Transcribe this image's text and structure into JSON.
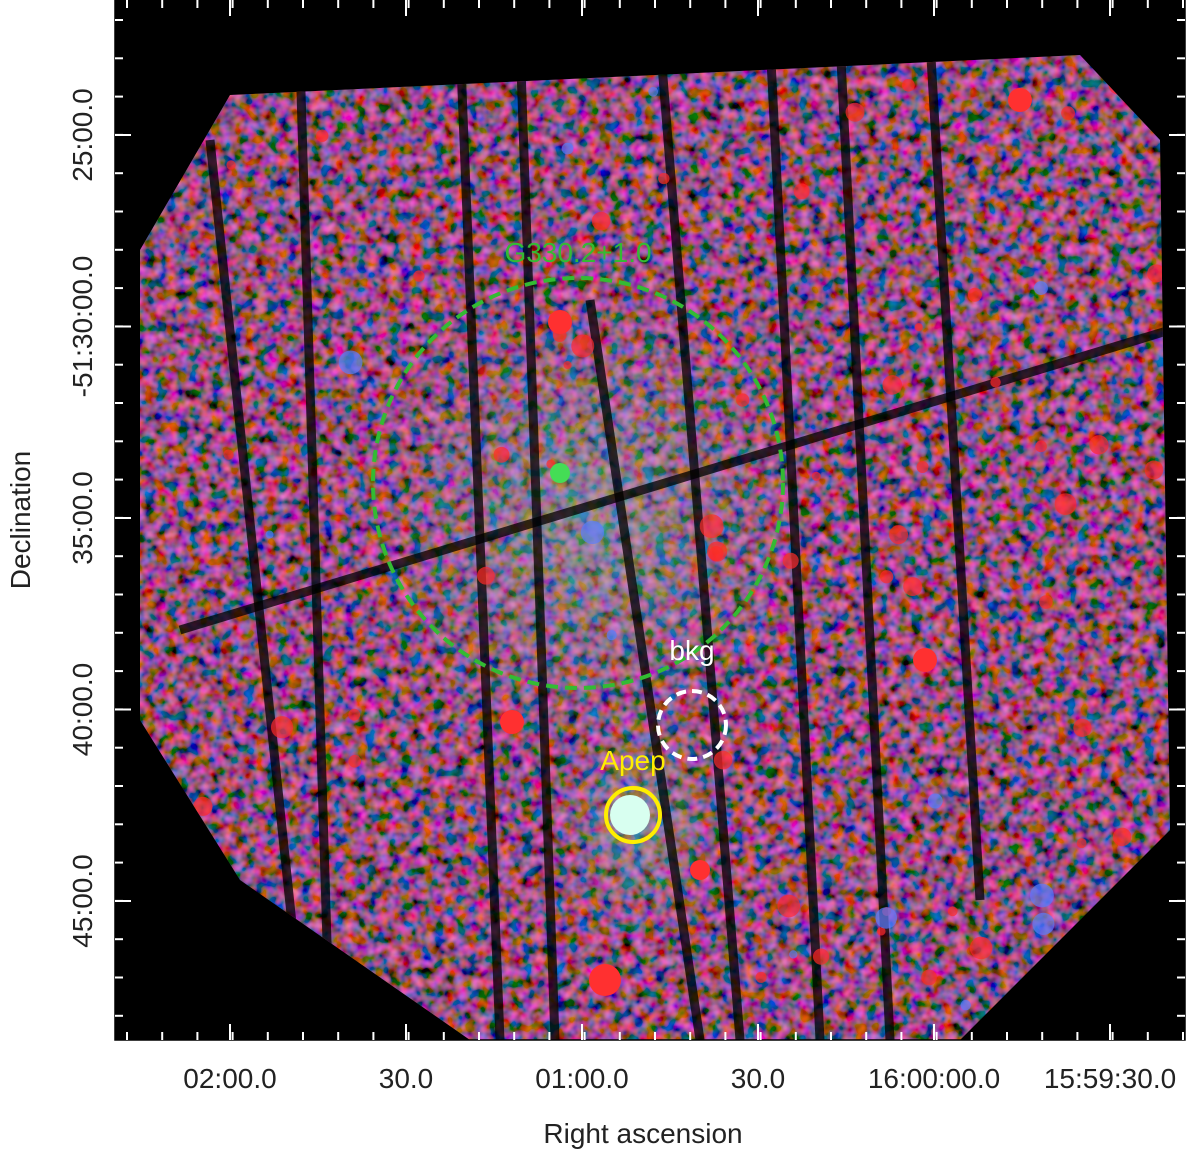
{
  "axes": {
    "x_label": "Right ascension",
    "y_label": "Declination",
    "x_ticks": [
      "02:00.0",
      "30.0",
      "01:00.0",
      "30.0",
      "16:00:00.0",
      "15:59:30.0"
    ],
    "y_ticks": [
      "25:00.0",
      "-51:30:00.0",
      "35:00.0",
      "40:00.0",
      "45:00.0"
    ]
  },
  "annotations": [
    {
      "label": "G330.2+1.0",
      "color": "#33bb33"
    },
    {
      "label": "bkg",
      "color": "#ffffff"
    },
    {
      "label": "Apep",
      "color": "#ffee00"
    }
  ]
}
